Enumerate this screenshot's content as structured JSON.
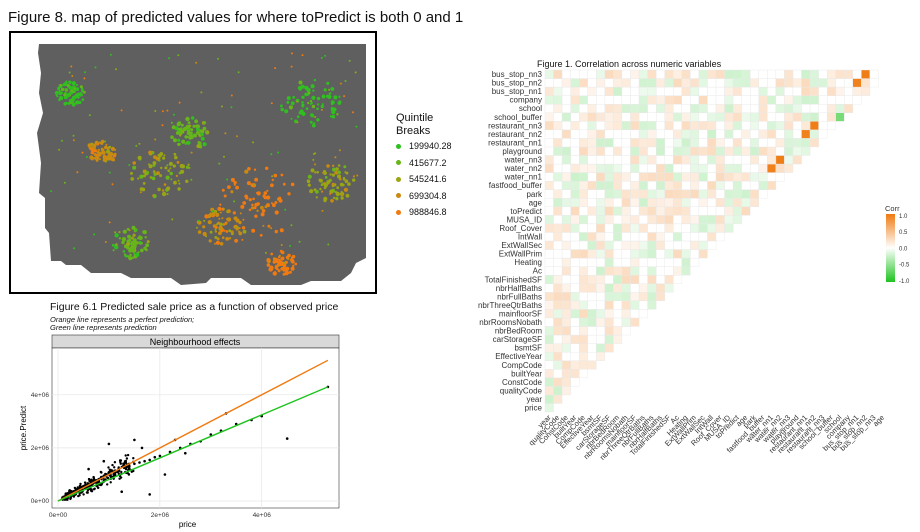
{
  "figure8": {
    "title": "Figure 8. map of predicted values for where toPredict is both 0 and 1",
    "legend_title": "Quintile\nBreaks",
    "legend": [
      {
        "label": "199940.28",
        "color": "#2fbf1f"
      },
      {
        "label": "415677.2",
        "color": "#67b51a"
      },
      {
        "label": "545241.6",
        "color": "#9aa512"
      },
      {
        "label": "699304.8",
        "color": "#c98a10"
      },
      {
        "label": "988846.8",
        "color": "#f07a10"
      }
    ]
  },
  "figure61": {
    "title": "Figure 6.1 Predicted sale price as a function of observed price",
    "subtitle1": "Orange line represents a perfect prediction;",
    "subtitle2": " Green line represents prediction",
    "facet_label": "Neighbourhood effects",
    "colors": {
      "perfect_line": "#f07a10",
      "fit_line": "#1ec31e",
      "points": "#000000",
      "panel_bg": "#ffffff",
      "strip_bg": "#d9d9d9"
    }
  },
  "figure1": {
    "title": "Figure 1. Correlation across numeric variables",
    "legend_title": "Corr",
    "legend_ticks": [
      "1.0",
      "0.5",
      "0.0",
      "-0.5",
      "-1.0"
    ],
    "colors": {
      "high": "#f07a10",
      "mid": "#ffffff",
      "low": "#1ec31e"
    }
  },
  "chart_data": [
    {
      "type": "scatter",
      "title": "Figure 6.1 Predicted sale price as a function of observed price",
      "xlabel": "price",
      "ylabel": "price.Predict",
      "x_ticks": [
        "0e+00",
        "2e+06",
        "4e+06"
      ],
      "y_ticks": [
        "0e+00",
        "2e+06",
        "4e+06"
      ],
      "xlim": [
        0,
        5400000
      ],
      "ylim": [
        0,
        5500000
      ],
      "grid": true,
      "series": [
        {
          "name": "perfect prediction",
          "type": "line",
          "x": [
            0,
            5300000
          ],
          "y": [
            0,
            5300000
          ]
        },
        {
          "name": "prediction",
          "type": "line",
          "x": [
            0,
            5300000
          ],
          "y": [
            0,
            4300000
          ]
        },
        {
          "name": "",
          "type": "scatter",
          "x": [
            150000,
            200000,
            250000,
            300000,
            350000,
            400000,
            450000,
            500000,
            550000,
            600000,
            650000,
            700000,
            750000,
            800000,
            850000,
            900000,
            950000,
            1000000,
            1100000,
            1200000,
            1300000,
            1400000,
            1500000,
            1600000,
            1700000,
            1800000,
            1900000,
            2000000,
            2200000,
            2400000,
            2600000,
            2800000,
            3000000,
            3200000,
            3500000,
            3800000,
            4000000,
            4500000,
            5300000,
            1500000,
            2100000,
            3300000,
            1250000,
            1650000,
            2300000,
            2500000,
            900000,
            600000,
            1000000,
            1800000
          ],
          "y": [
            180000,
            260000,
            300000,
            360000,
            420000,
            470000,
            540000,
            560000,
            600000,
            650000,
            700000,
            760000,
            780000,
            820000,
            900000,
            950000,
            980000,
            1050000,
            1100000,
            1150000,
            1250000,
            1300000,
            1400000,
            1450000,
            1500000,
            1550000,
            1650000,
            1700000,
            1850000,
            2000000,
            2150000,
            2250000,
            2500000,
            2650000,
            2900000,
            3050000,
            3200000,
            2350000,
            4300000,
            2300000,
            1000000,
            3300000,
            350000,
            2000000,
            2300000,
            1800000,
            1500000,
            1200000,
            2150000,
            250000
          ]
        }
      ]
    },
    {
      "type": "heatmap",
      "title": "Figure 1. Correlation across numeric variables",
      "legend": "Corr",
      "clim": [
        -1,
        1
      ],
      "variables": [
        "price",
        "year",
        "qualityCode",
        "ConstCode",
        "builtYear",
        "CompCode",
        "EffectiveYear",
        "bsmtSF",
        "carStorageSF",
        "nbrBedRoom",
        "nbrRoomsNobath",
        "mainfloorSF",
        "nbrThreeQtrBaths",
        "nbrFullBaths",
        "nbrHalfBaths",
        "TotalFinishedSF",
        "Ac",
        "Heating",
        "ExtWallPrim",
        "ExtWallSec",
        "IntWall",
        "Roof_Cover",
        "MUSA_ID",
        "toPredict",
        "age",
        "park",
        "fastfood_buffer",
        "water_nn1",
        "water_nn2",
        "water_nn3",
        "playground",
        "restaurant_nn1",
        "restaurant_nn2",
        "restaurant_nn3",
        "school_buffer",
        "school",
        "company",
        "bus_stop_nn1",
        "bus_stop_nn2",
        "bus_stop_nn3"
      ],
      "x_tick_labels": [
        "year",
        "qualityCode",
        "ConstCode",
        "builtYear",
        "CompCode",
        "EffectiveYear",
        "bsmtSF",
        "carStorageSF",
        "nbrBedRoom",
        "nbrRoomsNobath",
        "mainfloorSF",
        "nbrThreeQtrBaths",
        "nbrFullBaths",
        "nbrHalfBaths",
        "TotalFinishedSF",
        "Ac",
        "Heating",
        "ExtWallPrim",
        "ExtWallSec",
        "IntWall",
        "Roof_Cover",
        "MUSA_ID",
        "toPredict",
        "age",
        "park",
        "fastfood_buffer",
        "water_nn1",
        "water_nn2",
        "water_nn3",
        "playground",
        "restaurant_nn1",
        "restaurant_nn2",
        "restaurant_nn3",
        "school_buffer",
        "school",
        "company",
        "bus_stop_nn1",
        "bus_stop_nn2",
        "bus_stop_nn3",
        "age"
      ],
      "strong_cells": [
        {
          "row": "water_nn2",
          "col": "water_nn1",
          "value": 0.95
        },
        {
          "row": "water_nn3",
          "col": "water_nn2",
          "value": 0.97
        },
        {
          "row": "restaurant_nn2",
          "col": "restaurant_nn1",
          "value": 0.95
        },
        {
          "row": "restaurant_nn3",
          "col": "restaurant_nn2",
          "value": 0.97
        },
        {
          "row": "bus_stop_nn2",
          "col": "bus_stop_nn1",
          "value": 0.95
        },
        {
          "row": "bus_stop_nn3",
          "col": "bus_stop_nn2",
          "value": 0.97
        },
        {
          "row": "EffectiveYear",
          "col": "age",
          "value": -0.95
        },
        {
          "row": "bsmtSF",
          "col": "TotalFinishedSF",
          "value": 0.6
        },
        {
          "row": "carStorageSF",
          "col": "TotalFinishedSF",
          "value": 0.55
        },
        {
          "row": "price",
          "col": "TotalFinishedSF",
          "value": 0.6
        },
        {
          "row": "price",
          "col": "qualityCode",
          "value": 0.55
        },
        {
          "row": "school_buffer",
          "col": "school",
          "value": -0.6
        }
      ]
    }
  ]
}
